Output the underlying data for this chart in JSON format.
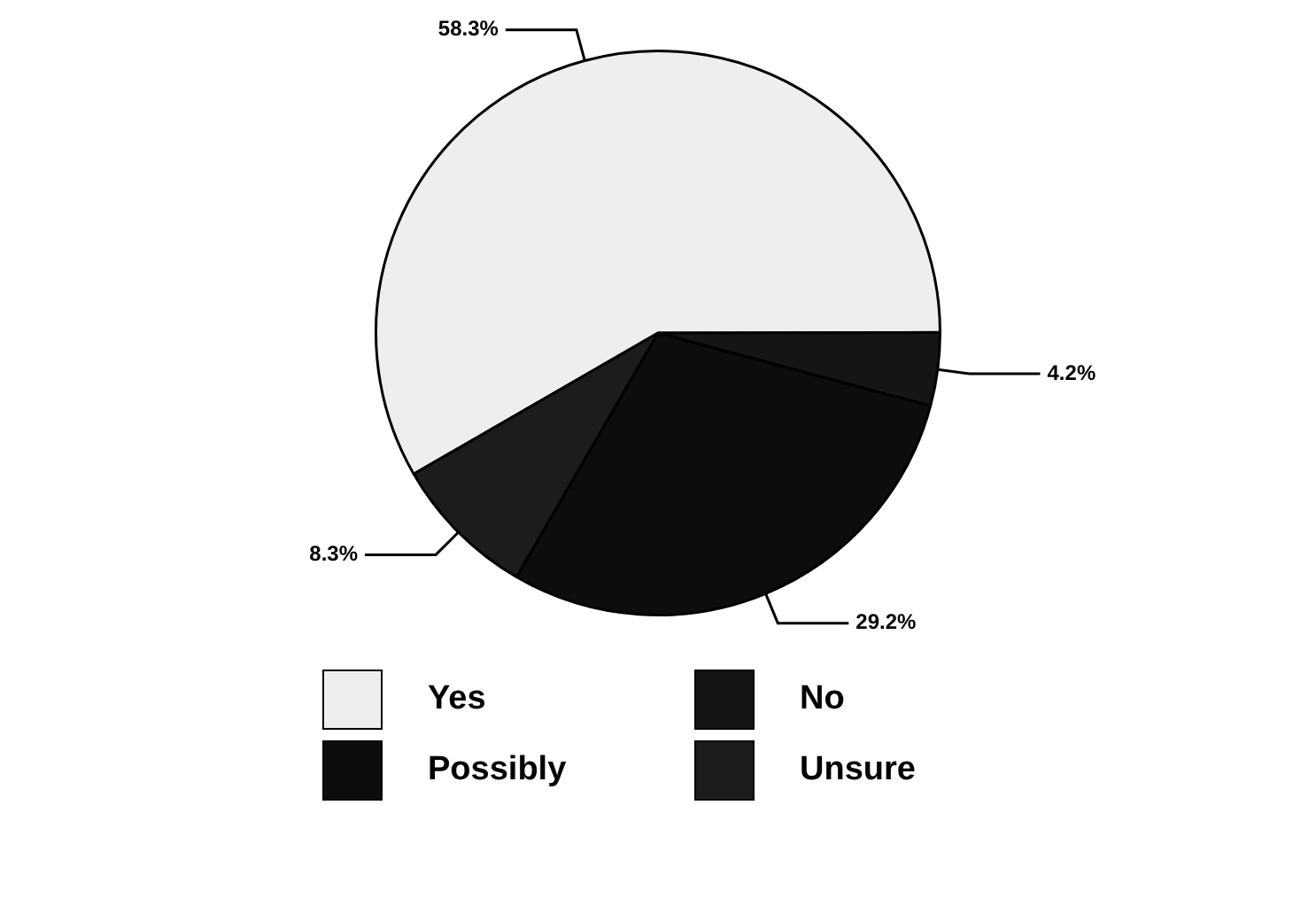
{
  "chart_data": {
    "type": "pie",
    "categories": [
      "Yes",
      "No",
      "Possibly",
      "Unsure"
    ],
    "values": [
      58.3,
      4.2,
      29.2,
      8.3
    ],
    "value_labels": [
      "58.3%",
      "4.2%",
      "29.2%",
      "8.3%"
    ],
    "colors": [
      "#eeeeee",
      "#151515",
      "#0d0d0d",
      "#1c1c1c"
    ],
    "legend": "bottom"
  }
}
